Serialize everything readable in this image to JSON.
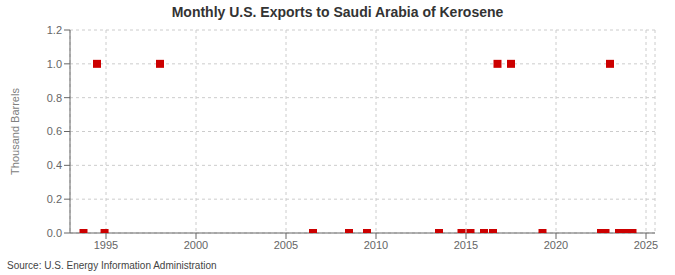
{
  "chart_data": {
    "type": "scatter",
    "title": "Monthly U.S. Exports to Saudi Arabia of Kerosene",
    "ylabel": "Thousand Barrels",
    "annotation": "Source: U.S. Energy Information Administration",
    "x": [
      1993.75,
      1994.5,
      1994.92,
      1998.0,
      2006.5,
      2008.5,
      2009.5,
      2013.5,
      2014.75,
      2015.25,
      2016.0,
      2016.5,
      2016.75,
      2017.5,
      2019.25,
      2022.5,
      2022.75,
      2023.0,
      2023.5,
      2023.75,
      2024.0,
      2024.25
    ],
    "values": [
      0.0,
      1.0,
      0.0,
      1.0,
      0.0,
      0.0,
      0.0,
      0.0,
      0.0,
      0.0,
      0.0,
      0.0,
      1.0,
      1.0,
      0.0,
      0.0,
      0.0,
      1.0,
      0.0,
      0.0,
      0.0,
      0.0
    ],
    "color": "#cc0000",
    "marker": "square",
    "xlim": [
      1993.0,
      2025.5
    ],
    "ylim": [
      0,
      1.2
    ],
    "xticks": [
      1995,
      2000,
      2005,
      2010,
      2015,
      2020,
      2025
    ],
    "yticks": [
      {
        "value": 0.0,
        "label": "0.0"
      },
      0.2,
      0.4,
      0.6,
      0.8,
      {
        "value": 1.0,
        "label": "1.0"
      },
      1.2
    ],
    "grid": true
  }
}
